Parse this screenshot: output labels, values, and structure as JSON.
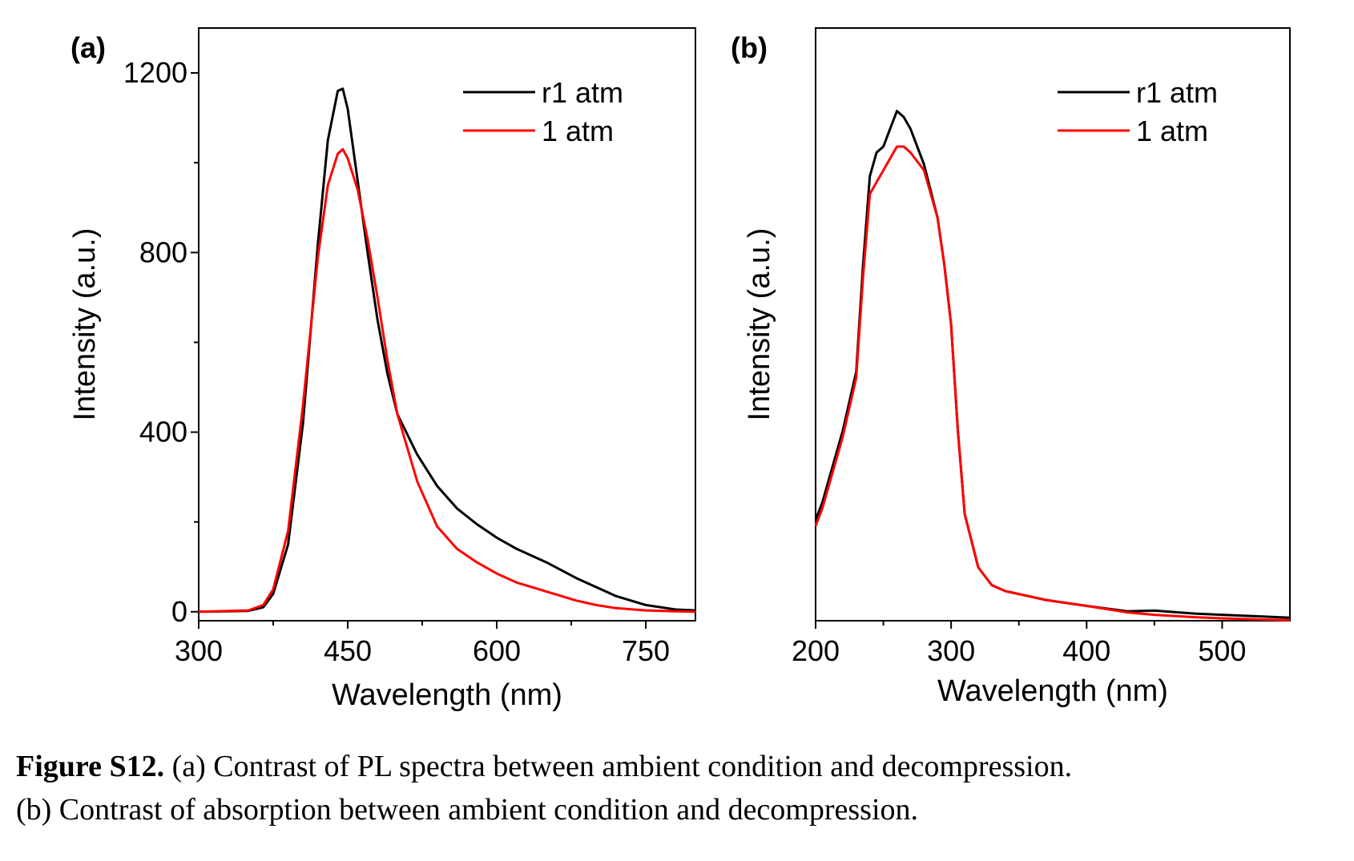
{
  "caption": {
    "label": "Figure S12.",
    "line1": " (a) Contrast of PL spectra between ambient condition and decompression.",
    "line2": "(b) Contrast of absorption between ambient condition and decompression."
  },
  "chart_data": [
    {
      "panel": "(a)",
      "type": "line",
      "xlabel": "Wavelength (nm)",
      "ylabel": "Intensity (a.u.)",
      "xlim": [
        300,
        800
      ],
      "ylim": [
        -20,
        1300
      ],
      "xticks": [
        300,
        450,
        600,
        750
      ],
      "yticks": [
        0,
        400,
        800,
        1200
      ],
      "show_y_ticklabels": true,
      "legend_position": "top-right",
      "series": [
        {
          "name": "r1 atm",
          "color": "#000000",
          "x": [
            300,
            350,
            365,
            375,
            390,
            405,
            420,
            430,
            440,
            445,
            450,
            460,
            470,
            480,
            490,
            500,
            520,
            540,
            560,
            580,
            600,
            620,
            650,
            680,
            700,
            720,
            750,
            780,
            800
          ],
          "y": [
            0,
            2,
            10,
            40,
            150,
            420,
            820,
            1050,
            1160,
            1165,
            1120,
            960,
            800,
            650,
            530,
            440,
            350,
            280,
            230,
            195,
            165,
            140,
            110,
            75,
            55,
            35,
            15,
            5,
            3
          ]
        },
        {
          "name": "1 atm",
          "color": "#ff0000",
          "x": [
            300,
            350,
            365,
            375,
            390,
            405,
            420,
            430,
            440,
            445,
            450,
            460,
            470,
            480,
            490,
            500,
            520,
            540,
            560,
            580,
            600,
            620,
            650,
            680,
            700,
            720,
            750,
            780,
            800
          ],
          "y": [
            0,
            3,
            15,
            50,
            180,
            460,
            790,
            950,
            1020,
            1030,
            1010,
            940,
            830,
            700,
            560,
            440,
            290,
            190,
            140,
            110,
            85,
            65,
            45,
            25,
            15,
            8,
            3,
            1,
            0
          ]
        }
      ]
    },
    {
      "panel": "(b)",
      "type": "line",
      "xlabel": "Wavelength (nm)",
      "ylabel": "Intensity (a.u.)",
      "xlim": [
        200,
        550
      ],
      "ylim": [
        0,
        1.0
      ],
      "xticks": [
        200,
        300,
        400,
        500
      ],
      "yticks": [],
      "show_y_ticklabels": false,
      "legend_position": "top-right",
      "series": [
        {
          "name": "r1 atm",
          "color": "#000000",
          "x": [
            200,
            205,
            210,
            220,
            230,
            235,
            240,
            245,
            250,
            255,
            260,
            265,
            270,
            280,
            290,
            295,
            300,
            305,
            310,
            320,
            330,
            340,
            350,
            370,
            400,
            430,
            450,
            480,
            500,
            530,
            550
          ],
          "y": [
            0.17,
            0.2,
            0.24,
            0.32,
            0.42,
            0.6,
            0.75,
            0.79,
            0.8,
            0.83,
            0.86,
            0.85,
            0.83,
            0.77,
            0.68,
            0.6,
            0.5,
            0.32,
            0.18,
            0.09,
            0.06,
            0.05,
            0.045,
            0.035,
            0.025,
            0.016,
            0.017,
            0.012,
            0.01,
            0.007,
            0.005
          ]
        },
        {
          "name": "1 atm",
          "color": "#ff0000",
          "x": [
            200,
            205,
            210,
            220,
            230,
            235,
            240,
            245,
            250,
            255,
            260,
            265,
            270,
            280,
            290,
            295,
            300,
            305,
            310,
            320,
            330,
            340,
            350,
            370,
            400,
            430,
            450,
            480,
            500,
            530,
            550
          ],
          "y": [
            0.16,
            0.19,
            0.23,
            0.31,
            0.41,
            0.58,
            0.72,
            0.74,
            0.76,
            0.78,
            0.8,
            0.8,
            0.79,
            0.76,
            0.68,
            0.6,
            0.5,
            0.32,
            0.18,
            0.09,
            0.06,
            0.05,
            0.045,
            0.035,
            0.025,
            0.014,
            0.01,
            0.006,
            0.004,
            0.002,
            0.001
          ]
        }
      ]
    }
  ]
}
